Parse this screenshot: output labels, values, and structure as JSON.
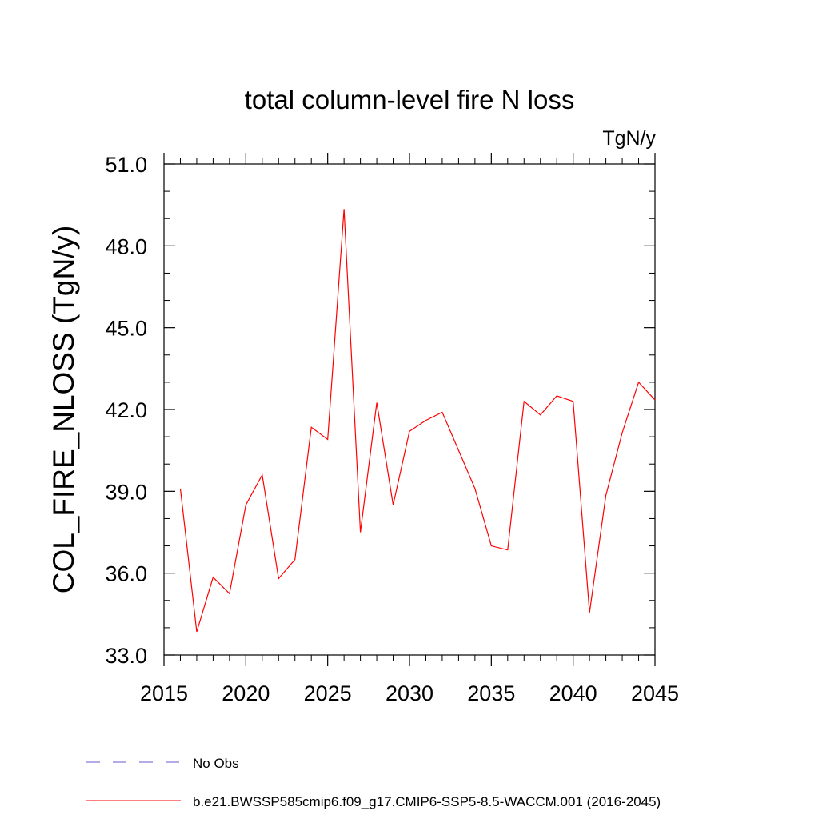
{
  "chart_data": {
    "type": "line",
    "title": "total column-level fire N loss",
    "units_label": "TgN/y",
    "ylabel": "COL_FIRE_NLOSS  (TgN/y)",
    "xlabel": "",
    "xlim": [
      2015,
      2045
    ],
    "ylim": [
      33.0,
      51.0
    ],
    "x_ticks": [
      2015,
      2020,
      2025,
      2030,
      2035,
      2040,
      2045
    ],
    "x_tick_labels": [
      "2015",
      "2020",
      "2025",
      "2030",
      "2035",
      "2040",
      "2045"
    ],
    "y_ticks": [
      33.0,
      36.0,
      39.0,
      42.0,
      45.0,
      48.0,
      51.0
    ],
    "y_tick_labels": [
      "33.0",
      "36.0",
      "39.0",
      "42.0",
      "45.0",
      "48.0",
      "51.0"
    ],
    "grid": false,
    "series": [
      {
        "name": "b.e21.BWSSP585cmip6.f09_g17.CMIP6-SSP5-8.5-WACCM.001 (2016-2045)",
        "color": "#ff0000",
        "x": [
          2016,
          2017,
          2018,
          2019,
          2020,
          2021,
          2022,
          2023,
          2024,
          2025,
          2026,
          2027,
          2028,
          2029,
          2030,
          2031,
          2032,
          2033,
          2034,
          2035,
          2036,
          2037,
          2038,
          2039,
          2040,
          2041,
          2042,
          2043,
          2044,
          2045
        ],
        "values": [
          39.1,
          33.85,
          35.85,
          35.25,
          38.5,
          39.6,
          35.8,
          36.5,
          41.35,
          40.9,
          49.35,
          37.5,
          42.25,
          38.5,
          41.2,
          41.6,
          41.9,
          40.5,
          39.1,
          37.0,
          36.85,
          42.3,
          41.8,
          42.5,
          42.3,
          34.55,
          38.85,
          41.15,
          43.0,
          42.35
        ]
      }
    ],
    "legend": [
      {
        "label": "No Obs",
        "color": "#6a5acd",
        "style": "dashed"
      },
      {
        "label": "b.e21.BWSSP585cmip6.f09_g17.CMIP6-SSP5-8.5-WACCM.001 (2016-2045)",
        "color": "#ff0000",
        "style": "solid"
      }
    ]
  }
}
